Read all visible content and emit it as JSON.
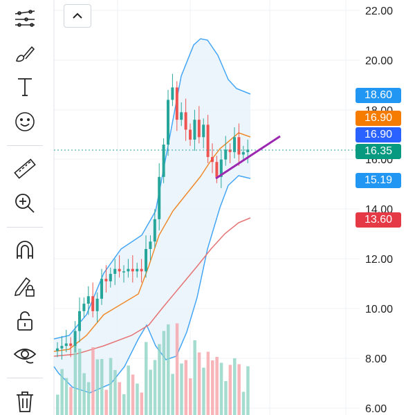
{
  "toolbar": {
    "tools": [
      {
        "name": "trend-line-tools-icon"
      },
      {
        "name": "brush-icon"
      },
      {
        "name": "text-tool-icon"
      },
      {
        "name": "emoji-icon"
      },
      {
        "name": "ruler-icon"
      },
      {
        "name": "zoom-in-icon"
      },
      {
        "name": "magnet-icon"
      },
      {
        "name": "lock-drawings-icon"
      },
      {
        "name": "unlock-icon"
      },
      {
        "name": "eye-icon"
      },
      {
        "name": "trash-icon"
      }
    ]
  },
  "collapse_button": {
    "icon": "chevron-up-icon"
  },
  "price_axis": {
    "labels": [
      "22.00",
      "20.00",
      "18.00",
      "16.00",
      "14.00",
      "12.00",
      "10.00",
      "8.00",
      "6.00"
    ]
  },
  "badges": [
    {
      "label": "18.60",
      "color": "#2196f3"
    },
    {
      "label": "16.90",
      "color": "#f57c00"
    },
    {
      "label": "16.90",
      "color": "#2962ff"
    },
    {
      "label": "16.35",
      "color": "#089981"
    },
    {
      "label": "15.19",
      "color": "#2196f3"
    },
    {
      "label": "13.60",
      "color": "#e53945"
    }
  ],
  "chart_data": {
    "type": "candlestick",
    "last_price": 16.35,
    "ylim": [
      6.0,
      22.0
    ],
    "grid": true,
    "indicators": {
      "bollinger_upper_last": 18.6,
      "bollinger_lower_last": 15.19,
      "moving_average_fast_last": 16.9,
      "moving_average_slow_last": 13.6
    },
    "candles_close": [
      8.4,
      8.5,
      8.6,
      8.5,
      9.1,
      9.9,
      10.2,
      10.5,
      9.9,
      10.4,
      11.2,
      11.1,
      11.4,
      11.6,
      11.5,
      11.5,
      11.6,
      11.5,
      11.6,
      11.5,
      12.4,
      12.7,
      13.6,
      15.3,
      16.6,
      18.4,
      18.9,
      17.6,
      17.9,
      17.2,
      16.8,
      17.6,
      16.9,
      17.4,
      16.1,
      15.9,
      15.3,
      16.0,
      16.4,
      16.3,
      16.9,
      16.2,
      16.3,
      16.4
    ]
  }
}
